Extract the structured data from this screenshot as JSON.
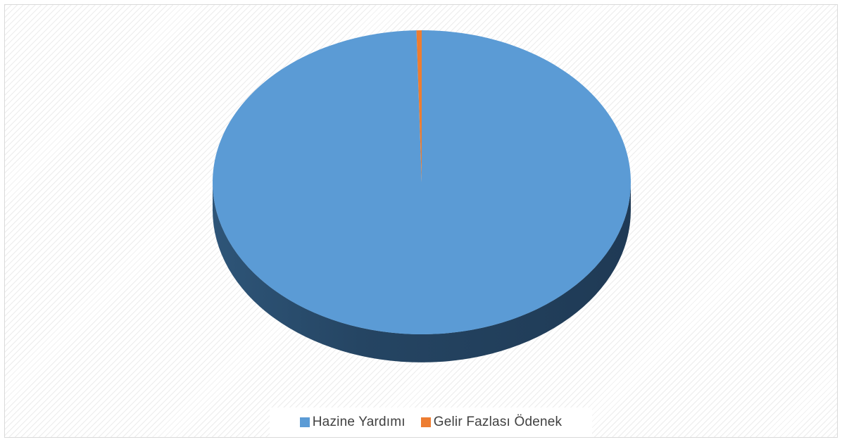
{
  "chart_data": {
    "type": "pie",
    "style": "3d",
    "categories": [
      "Hazine Yardımı",
      "Gelir Fazlası Ödenek"
    ],
    "values": [
      99.6,
      0.4
    ],
    "colors": [
      "#5b9bd5",
      "#ed7d31"
    ],
    "title": "",
    "legend_position": "bottom"
  },
  "legend": {
    "items": [
      {
        "label": "Hazine Yardımı",
        "color": "#5b9bd5"
      },
      {
        "label": "Gelir Fazlası Ödenek",
        "color": "#ed7d31"
      }
    ]
  }
}
